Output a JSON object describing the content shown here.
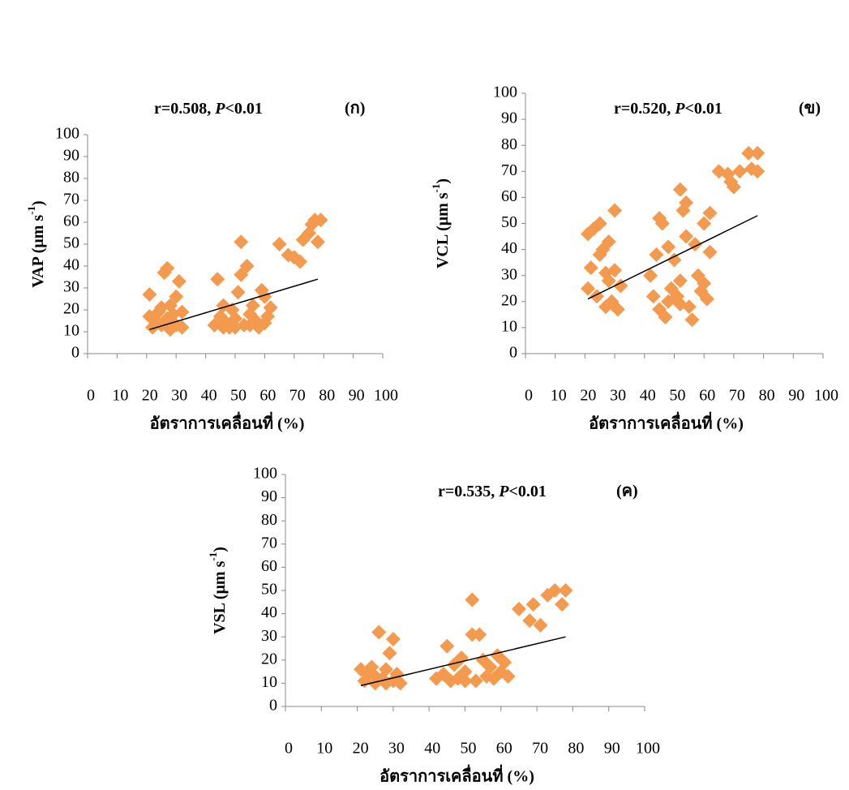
{
  "chart_data": [
    {
      "type": "scatter",
      "color": "#f39a4f",
      "stat": "r=0.508, ",
      "p_symbol": "P",
      "p_value": "<0.01",
      "panel": "(ก)",
      "y_label": {
        "text": "VAP (μm s",
        "sup": "-1",
        "end": ")"
      },
      "x_label": "อัตราการเคลื่อนที่ (%)",
      "xlim": [
        0,
        100
      ],
      "ylim": [
        0,
        100
      ],
      "xticks": [
        0,
        10,
        20,
        30,
        40,
        50,
        60,
        70,
        80,
        90,
        100
      ],
      "yticks": [
        0,
        10,
        20,
        30,
        40,
        50,
        60,
        70,
        80,
        90,
        100
      ],
      "x": [
        21,
        21,
        22,
        23,
        24,
        25,
        26,
        27,
        27,
        28,
        28,
        29,
        30,
        30,
        31,
        32,
        32,
        25,
        29,
        43,
        44,
        45,
        46,
        47,
        48,
        49,
        50,
        51,
        52,
        52,
        53,
        54,
        55,
        56,
        57,
        58,
        59,
        60,
        61,
        62,
        46,
        50,
        55,
        60,
        65,
        68,
        70,
        72,
        73,
        75,
        77,
        78,
        79,
        76
      ],
      "values": [
        17,
        27,
        12,
        15,
        19,
        13,
        37,
        39,
        16,
        11,
        22,
        18,
        26,
        13,
        33,
        12,
        19,
        21,
        14,
        13,
        34,
        17,
        22,
        14,
        12,
        20,
        16,
        28,
        51,
        36,
        13,
        40,
        18,
        22,
        15,
        12,
        29,
        26,
        17,
        21,
        12,
        12,
        13,
        14,
        50,
        45,
        44,
        42,
        52,
        55,
        61,
        51,
        61,
        59
      ],
      "trendline": {
        "x": [
          21,
          78
        ],
        "values": [
          11,
          34
        ]
      }
    },
    {
      "type": "scatter",
      "color": "#f39a4f",
      "stat": "r=0.520, ",
      "p_symbol": "P",
      "p_value": "<0.01",
      "panel": "(ข)",
      "y_label": {
        "text": "VCL (μm s",
        "sup": "-1",
        "end": ")"
      },
      "x_label": "อัตราการเคลื่อนที่ (%)",
      "xlim": [
        0,
        100
      ],
      "ylim": [
        0,
        100
      ],
      "xticks": [
        0,
        10,
        20,
        30,
        40,
        50,
        60,
        70,
        80,
        90,
        100
      ],
      "yticks": [
        0,
        10,
        20,
        30,
        40,
        50,
        60,
        70,
        80,
        90,
        100
      ],
      "x": [
        21,
        21,
        22,
        23,
        24,
        25,
        26,
        27,
        28,
        28,
        29,
        30,
        30,
        31,
        32,
        25,
        27,
        42,
        43,
        44,
        45,
        45,
        46,
        47,
        48,
        49,
        50,
        51,
        52,
        52,
        53,
        54,
        54,
        55,
        56,
        57,
        58,
        59,
        60,
        60,
        61,
        62,
        62,
        48,
        52,
        65,
        68,
        69,
        70,
        72,
        75,
        76,
        78,
        78
      ],
      "values": [
        25,
        46,
        33,
        48,
        22,
        50,
        40,
        18,
        43,
        28,
        20,
        55,
        32,
        17,
        26,
        38,
        31,
        30,
        22,
        38,
        52,
        17,
        50,
        14,
        41,
        25,
        36,
        22,
        63,
        28,
        55,
        58,
        45,
        18,
        13,
        42,
        30,
        24,
        50,
        27,
        21,
        54,
        39,
        20,
        19,
        70,
        69,
        66,
        64,
        70,
        77,
        71,
        77,
        70
      ],
      "trendline": {
        "x": [
          21,
          78
        ],
        "values": [
          21,
          53
        ]
      }
    },
    {
      "type": "scatter",
      "color": "#f39a4f",
      "stat": "r=0.535, ",
      "p_symbol": "P",
      "p_value": "<0.01",
      "panel": "(ค)",
      "y_label": {
        "text": "VSL (μm s",
        "sup": "-1",
        "end": ")"
      },
      "x_label": "อัตราการเคลื่อนที่ (%)",
      "xlim": [
        0,
        100
      ],
      "ylim": [
        0,
        100
      ],
      "xticks": [
        0,
        10,
        20,
        30,
        40,
        50,
        60,
        70,
        80,
        90,
        100
      ],
      "yticks": [
        0,
        10,
        20,
        30,
        40,
        50,
        60,
        70,
        80,
        90,
        100
      ],
      "x": [
        21,
        22,
        23,
        24,
        25,
        26,
        27,
        28,
        29,
        30,
        30,
        31,
        32,
        25,
        28,
        42,
        44,
        45,
        46,
        47,
        48,
        49,
        50,
        52,
        52,
        53,
        54,
        55,
        56,
        57,
        58,
        59,
        60,
        61,
        62,
        50,
        65,
        68,
        69,
        71,
        73,
        75,
        77,
        78
      ],
      "values": [
        16,
        11,
        14,
        17,
        10,
        32,
        12,
        16,
        23,
        29,
        11,
        14,
        10,
        13,
        10,
        12,
        14,
        26,
        11,
        18,
        12,
        21,
        15,
        46,
        31,
        11,
        31,
        20,
        13,
        17,
        12,
        22,
        15,
        19,
        13,
        11,
        42,
        37,
        44,
        35,
        48,
        50,
        44,
        50
      ],
      "trendline": {
        "x": [
          21,
          78
        ],
        "values": [
          9,
          30
        ]
      }
    }
  ]
}
